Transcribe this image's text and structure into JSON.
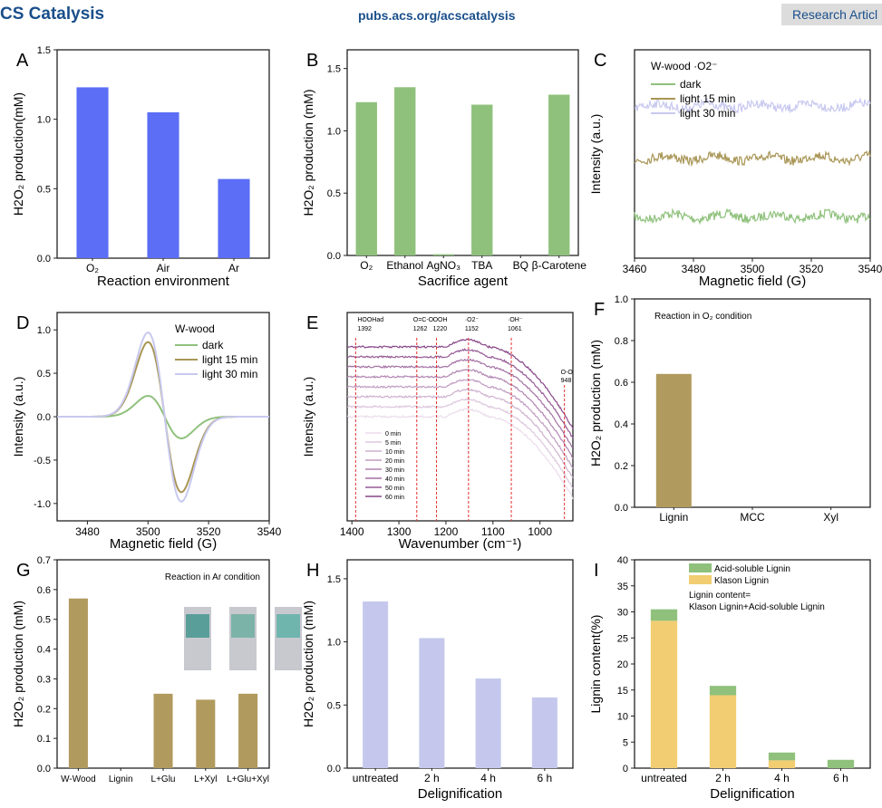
{
  "header": {
    "journal": "CS Catalysis",
    "url": "pubs.acs.org/acscatalysis",
    "section": "Research Articl"
  },
  "colors": {
    "blue": "#5b6ef5",
    "green": "#8fc17c",
    "olive": "#b09a5e",
    "lavender": "#c5c8ec",
    "yellow": "#f2cd72",
    "dark": "#8fc17c",
    "light15": "#a99656",
    "light30": "#c8c9f0"
  },
  "chart_data": [
    {
      "panel": "A",
      "type": "bar",
      "ylabel": "H2O2 production(mM)",
      "xlabel": "Reaction environment",
      "categories": [
        "O2",
        "Air",
        "Ar"
      ],
      "values": [
        1.23,
        1.05,
        0.57
      ],
      "ylim": [
        0,
        1.5
      ],
      "yticks": [
        "0.0",
        "0.5",
        "1.0",
        "1.5"
      ],
      "color": "#5b6ef5"
    },
    {
      "panel": "B",
      "type": "bar",
      "ylabel": "H2O2 production (mM)",
      "xlabel": "Sacrifice agent",
      "categories": [
        "O2",
        "Ethanol",
        "AgNO3",
        "TBA",
        "BQ",
        "β-Carotene"
      ],
      "values": [
        1.23,
        1.35,
        0.01,
        1.21,
        0,
        1.29
      ],
      "ylim": [
        0,
        1.65
      ],
      "yticks": [
        "0.0",
        "0.5",
        "1.0",
        "1.5"
      ],
      "color": "#8fc17c"
    },
    {
      "panel": "C",
      "type": "line",
      "ylabel": "Intensity (a.u.)",
      "xlabel": "Magnetic field (G)",
      "xlim": [
        3460,
        3540
      ],
      "xticks": [
        "3460",
        "3480",
        "3500",
        "3520",
        "3540"
      ],
      "legend_title": "W-wood  ·O2⁻",
      "series": [
        {
          "name": "dark",
          "level": 0.2
        },
        {
          "name": "light 15 min",
          "level": 0.48
        },
        {
          "name": "light 30 min",
          "level": 0.73
        }
      ]
    },
    {
      "panel": "D",
      "type": "line",
      "ylabel": "Intensity (a.u.)",
      "xlabel": "Magnetic field (G)",
      "xlim": [
        3470,
        3540
      ],
      "ylim": [
        -1.2,
        1.2
      ],
      "xticks": [
        "3480",
        "3500",
        "3520",
        "3540"
      ],
      "yticks": [
        "-1.0",
        "-0.5",
        "0.0",
        "0.5",
        "1.0"
      ],
      "legend_title": "W-wood",
      "series": [
        {
          "name": "dark",
          "max": 0.24,
          "min": -0.25
        },
        {
          "name": "light 15 min",
          "max": 0.86,
          "min": -0.87
        },
        {
          "name": "light 30 min",
          "max": 0.97,
          "min": -0.98
        }
      ]
    },
    {
      "panel": "E",
      "type": "line",
      "ylabel": "Intensity (a.u.)",
      "xlabel": "Wavenumber (cm⁻¹)",
      "xlim": [
        1410,
        930
      ],
      "xticks": [
        "1400",
        "1300",
        "1200",
        "1100",
        "1000"
      ],
      "annotations": [
        {
          "label": "HOOHad",
          "x": 1392
        },
        {
          "label": "O=C-O",
          "x": 1262
        },
        {
          "label": "OOH",
          "x": 1220
        },
        {
          "label": "·O2⁻",
          "x": 1152
        },
        {
          "label": "·OH⁻",
          "x": 1061
        },
        {
          "label": "O-O",
          "x": 948
        }
      ],
      "series": [
        {
          "name": "0 min"
        },
        {
          "name": "5 min"
        },
        {
          "name": "10 min"
        },
        {
          "name": "20 min"
        },
        {
          "name": "30 min"
        },
        {
          "name": "40 min"
        },
        {
          "name": "50 min"
        },
        {
          "name": "60 min"
        }
      ]
    },
    {
      "panel": "F",
      "type": "bar",
      "ylabel": "H2O2 production (mM)",
      "annotation": "Reaction in O2 condition",
      "categories": [
        "Lignin",
        "MCC",
        "Xyl"
      ],
      "values": [
        0.64,
        0,
        0
      ],
      "ylim": [
        0,
        1.0
      ],
      "yticks": [
        "0.0",
        "0.2",
        "0.4",
        "0.6",
        "0.8",
        "1.0"
      ],
      "color": "#b09a5e"
    },
    {
      "panel": "G",
      "type": "bar",
      "ylabel": "H2O2 production (mM)",
      "annotation": "Reaction in Ar condition",
      "categories": [
        "W-Wood",
        "Lignin",
        "L+Glu",
        "L+Xyl",
        "L+Glu+Xyl"
      ],
      "values": [
        0.57,
        0,
        0.25,
        0.23,
        0.25
      ],
      "ylim": [
        0,
        0.7
      ],
      "yticks": [
        "0.0",
        "0.1",
        "0.2",
        "0.3",
        "0.4",
        "0.5",
        "0.6",
        "0.7"
      ],
      "color": "#b09a5e"
    },
    {
      "panel": "H",
      "type": "bar",
      "ylabel": "H2O2 production (mM)",
      "xlabel": "Delignification",
      "categories": [
        "untreated",
        "2 h",
        "4 h",
        "6 h"
      ],
      "values": [
        1.32,
        1.03,
        0.71,
        0.56
      ],
      "ylim": [
        0,
        1.65
      ],
      "yticks": [
        "0.0",
        "0.5",
        "1.0",
        "1.5"
      ],
      "color": "#c5c8ec"
    },
    {
      "panel": "I",
      "type": "bar",
      "stacked": true,
      "ylabel": "Lignin content(%)",
      "xlabel": "Delignification",
      "categories": [
        "untreated",
        "2 h",
        "4 h",
        "6 h"
      ],
      "series": [
        {
          "name": "Klason Lignin",
          "values": [
            28.3,
            14,
            1.5,
            0
          ],
          "color": "#f2cd72"
        },
        {
          "name": "Acid-soluble Lignin",
          "values": [
            2.2,
            1.8,
            1.5,
            1.6
          ],
          "color": "#8fc17c"
        }
      ],
      "note": [
        "Lignin content=",
        "Klason Lignin+Acid-soluble Lignin"
      ],
      "ylim": [
        0,
        40
      ],
      "yticks": [
        "0",
        "5",
        "10",
        "15",
        "20",
        "25",
        "30",
        "35",
        "40"
      ]
    }
  ]
}
